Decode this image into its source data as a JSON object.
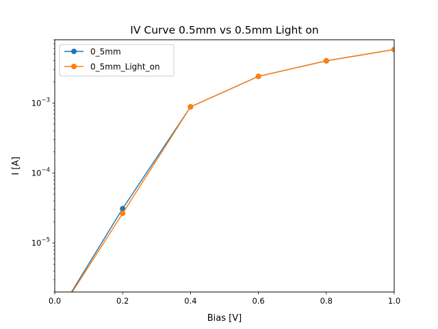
{
  "chart_data": {
    "type": "line",
    "title": "IV Curve 0.5mm vs 0.5mm Light on",
    "xlabel": "Bias [V]",
    "ylabel": "I [A]",
    "x_scale": "linear",
    "y_scale": "log",
    "xlim": [
      0.0,
      1.0
    ],
    "ylim": [
      2e-06,
      0.008
    ],
    "x_ticks": [
      "0.0",
      "0.2",
      "0.4",
      "0.6",
      "0.8",
      "1.0"
    ],
    "y_ticks": [
      {
        "base": "10",
        "exp": "−5",
        "value": 1e-05
      },
      {
        "base": "10",
        "exp": "−4",
        "value": 0.0001
      },
      {
        "base": "10",
        "exp": "−3",
        "value": 0.001
      }
    ],
    "grid": false,
    "legend_position": "upper left",
    "series": [
      {
        "name": "0_5mm",
        "color": "#1f77b4",
        "marker": "circle",
        "x": [
          0.0,
          0.2,
          0.4,
          0.6,
          0.8,
          1.0
        ],
        "y": [
          0,
          3.1e-05,
          0.00088,
          0.0024,
          0.004,
          0.0058
        ]
      },
      {
        "name": "0_5mm_Light_on",
        "color": "#ff7f0e",
        "marker": "circle",
        "x": [
          0.0,
          0.2,
          0.4,
          0.6,
          0.8,
          1.0
        ],
        "y": [
          0,
          2.65e-05,
          0.00088,
          0.0024,
          0.004,
          0.0058
        ]
      }
    ]
  }
}
